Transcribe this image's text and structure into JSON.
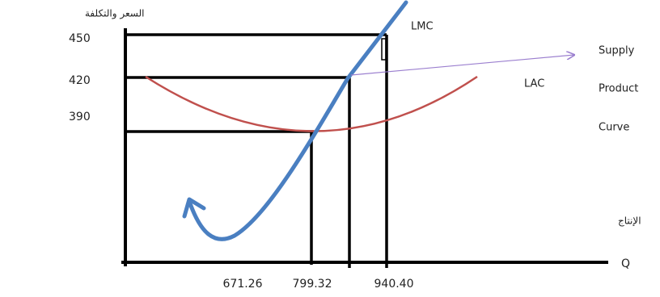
{
  "y_axis": {
    "label": "السعر والتكلفة",
    "ticks": [
      "450",
      "420",
      "390"
    ]
  },
  "x_axis": {
    "label": "الإنتاج",
    "symbol": "Q",
    "ticks": [
      "671.26",
      "799.32",
      "940.40"
    ]
  },
  "curves": {
    "marginal_cost": "LMC",
    "average_cost": "LAC"
  },
  "annotation": [
    "Supply",
    "Product",
    "Curve"
  ]
}
